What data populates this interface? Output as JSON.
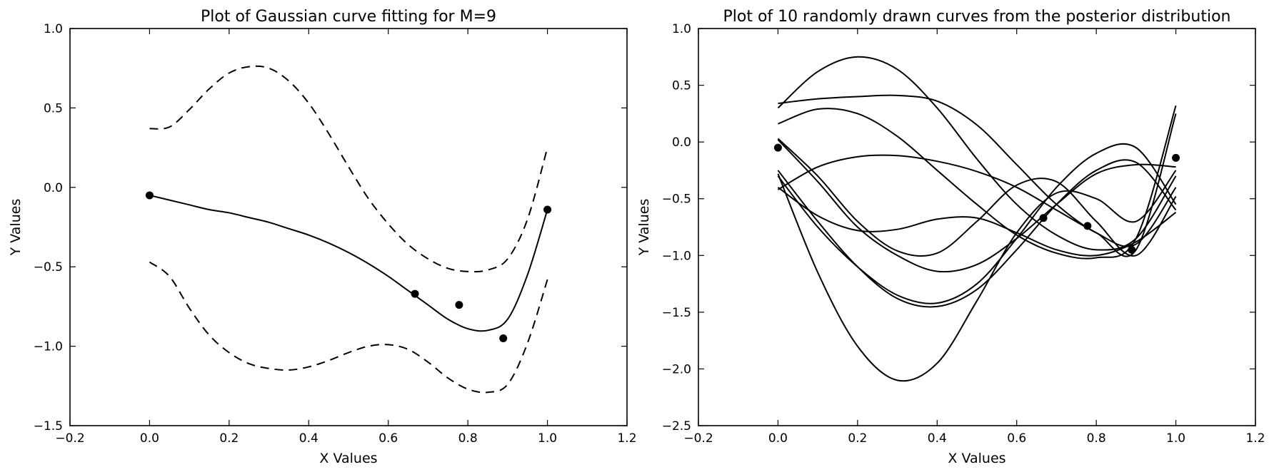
{
  "chart_data": [
    {
      "type": "line",
      "title": "Plot of Gaussian curve fitting for M=9",
      "xlabel": "X Values",
      "ylabel": "Y Values",
      "xlim": [
        -0.2,
        1.2
      ],
      "ylim": [
        -1.5,
        1.0
      ],
      "xticks": [
        -0.2,
        0.0,
        0.2,
        0.4,
        0.6,
        0.8,
        1.0,
        1.2
      ],
      "xtick_labels": [
        "−0.2",
        "0.0",
        "0.2",
        "0.4",
        "0.6",
        "0.8",
        "1.0",
        "1.2"
      ],
      "yticks": [
        -1.5,
        -1.0,
        -0.5,
        0.0,
        0.5,
        1.0
      ],
      "ytick_labels": [
        "−1.5",
        "−1.0",
        "−0.5",
        "0.0",
        "0.5",
        "1.0"
      ],
      "grid": false,
      "points": {
        "x": [
          0.0,
          0.667,
          0.778,
          0.889,
          1.0
        ],
        "y": [
          -0.05,
          -0.67,
          -0.74,
          -0.95,
          -0.14
        ]
      },
      "series": [
        {
          "style": "solid",
          "x": [
            0.0,
            0.05,
            0.1,
            0.15,
            0.2,
            0.25,
            0.3,
            0.35,
            0.4,
            0.45,
            0.5,
            0.55,
            0.6,
            0.65,
            0.7,
            0.75,
            0.8,
            0.85,
            0.9,
            0.95,
            1.0
          ],
          "y": [
            -0.05,
            -0.08,
            -0.11,
            -0.14,
            -0.16,
            -0.19,
            -0.22,
            -0.26,
            -0.3,
            -0.35,
            -0.41,
            -0.48,
            -0.56,
            -0.65,
            -0.74,
            -0.83,
            -0.89,
            -0.9,
            -0.83,
            -0.55,
            -0.14
          ]
        },
        {
          "style": "dashed",
          "x": [
            0.0,
            0.05,
            0.1,
            0.15,
            0.2,
            0.25,
            0.3,
            0.35,
            0.4,
            0.45,
            0.5,
            0.55,
            0.6,
            0.65,
            0.7,
            0.75,
            0.8,
            0.85,
            0.9,
            0.95,
            1.0
          ],
          "y": [
            0.37,
            0.38,
            0.49,
            0.62,
            0.72,
            0.76,
            0.75,
            0.67,
            0.53,
            0.34,
            0.13,
            -0.07,
            -0.23,
            -0.36,
            -0.45,
            -0.51,
            -0.53,
            -0.52,
            -0.45,
            -0.2,
            0.25
          ]
        },
        {
          "style": "dashed",
          "x": [
            0.0,
            0.05,
            0.1,
            0.15,
            0.2,
            0.25,
            0.3,
            0.35,
            0.4,
            0.45,
            0.5,
            0.55,
            0.6,
            0.65,
            0.7,
            0.75,
            0.8,
            0.85,
            0.9,
            0.95,
            1.0
          ],
          "y": [
            -0.47,
            -0.56,
            -0.76,
            -0.93,
            -1.04,
            -1.11,
            -1.14,
            -1.15,
            -1.13,
            -1.09,
            -1.04,
            -1.0,
            -0.99,
            -1.02,
            -1.1,
            -1.2,
            -1.27,
            -1.29,
            -1.24,
            -0.98,
            -0.58
          ]
        }
      ]
    },
    {
      "type": "line",
      "title": "Plot of 10 randomly drawn curves from the posterior distribution",
      "xlabel": "X Values",
      "ylabel": "Y Values",
      "xlim": [
        -0.2,
        1.2
      ],
      "ylim": [
        -2.5,
        1.0
      ],
      "xticks": [
        -0.2,
        0.0,
        0.2,
        0.4,
        0.6,
        0.8,
        1.0,
        1.2
      ],
      "xtick_labels": [
        "−0.2",
        "0.0",
        "0.2",
        "0.4",
        "0.6",
        "0.8",
        "1.0",
        "1.2"
      ],
      "yticks": [
        -2.5,
        -2.0,
        -1.5,
        -1.0,
        -0.5,
        0.0,
        0.5,
        1.0
      ],
      "ytick_labels": [
        "−2.5",
        "−2.0",
        "−1.5",
        "−1.0",
        "−0.5",
        "0.0",
        "0.5",
        "1.0"
      ],
      "grid": false,
      "points": {
        "x": [
          0.0,
          0.667,
          0.778,
          0.889,
          1.0
        ],
        "y": [
          -0.05,
          -0.67,
          -0.74,
          -0.95,
          -0.14
        ]
      },
      "series": [
        {
          "x": [
            0.0,
            0.1,
            0.2,
            0.3,
            0.4,
            0.5,
            0.6,
            0.7,
            0.8,
            0.9,
            1.0
          ],
          "y": [
            0.3,
            0.62,
            0.75,
            0.64,
            0.3,
            -0.15,
            -0.55,
            -0.82,
            -0.95,
            -0.85,
            -0.3
          ]
        },
        {
          "x": [
            0.0,
            0.1,
            0.2,
            0.3,
            0.4,
            0.5,
            0.6,
            0.7,
            0.8,
            0.9,
            1.0
          ],
          "y": [
            0.34,
            0.38,
            0.4,
            0.41,
            0.36,
            0.15,
            -0.2,
            -0.55,
            -0.8,
            -0.9,
            -0.4
          ]
        },
        {
          "x": [
            0.0,
            0.1,
            0.2,
            0.3,
            0.4,
            0.5,
            0.6,
            0.7,
            0.8,
            0.9,
            1.0
          ],
          "y": [
            0.16,
            0.29,
            0.25,
            0.05,
            -0.25,
            -0.55,
            -0.82,
            -0.98,
            -1.02,
            -0.85,
            0.32
          ]
        },
        {
          "x": [
            0.0,
            0.1,
            0.2,
            0.3,
            0.4,
            0.5,
            0.6,
            0.7,
            0.8,
            0.9,
            1.0
          ],
          "y": [
            -0.25,
            -0.7,
            -1.1,
            -1.38,
            -1.45,
            -1.3,
            -0.95,
            -0.55,
            -0.25,
            -0.18,
            -0.6
          ]
        },
        {
          "x": [
            0.0,
            0.1,
            0.2,
            0.3,
            0.4,
            0.5,
            0.6,
            0.7,
            0.8,
            0.9,
            1.0
          ],
          "y": [
            -0.28,
            -1.15,
            -1.8,
            -2.1,
            -1.95,
            -1.4,
            -0.8,
            -0.45,
            -0.5,
            -0.7,
            -0.25
          ]
        },
        {
          "x": [
            0.0,
            0.1,
            0.2,
            0.3,
            0.4,
            0.5,
            0.6,
            0.7,
            0.8,
            0.9,
            1.0
          ],
          "y": [
            -0.42,
            -0.22,
            -0.13,
            -0.12,
            -0.17,
            -0.26,
            -0.4,
            -0.6,
            -0.8,
            -0.95,
            0.25
          ]
        },
        {
          "x": [
            0.0,
            0.1,
            0.2,
            0.3,
            0.4,
            0.5,
            0.6,
            0.7,
            0.8,
            0.9,
            1.0
          ],
          "y": [
            -0.4,
            -0.65,
            -0.78,
            -0.77,
            -0.68,
            -0.67,
            -0.8,
            -0.95,
            -1.0,
            -0.88,
            -0.62
          ]
        },
        {
          "x": [
            0.0,
            0.1,
            0.2,
            0.3,
            0.4,
            0.5,
            0.6,
            0.7,
            0.8,
            0.9,
            1.0
          ],
          "y": [
            -0.3,
            -0.75,
            -1.1,
            -1.35,
            -1.42,
            -1.25,
            -0.85,
            -0.4,
            -0.1,
            -0.05,
            -0.55
          ]
        },
        {
          "x": [
            0.0,
            0.1,
            0.2,
            0.3,
            0.4,
            0.5,
            0.6,
            0.7,
            0.8,
            0.9,
            1.0
          ],
          "y": [
            0.03,
            -0.3,
            -0.7,
            -0.96,
            -0.98,
            -0.7,
            -0.38,
            -0.35,
            -0.7,
            -1.0,
            -0.48
          ]
        },
        {
          "x": [
            0.0,
            0.1,
            0.2,
            0.3,
            0.4,
            0.5,
            0.6,
            0.7,
            0.8,
            0.9,
            1.0
          ],
          "y": [
            0.02,
            -0.35,
            -0.75,
            -1.0,
            -1.14,
            -1.08,
            -0.85,
            -0.55,
            -0.28,
            -0.2,
            -0.22
          ]
        }
      ]
    }
  ]
}
